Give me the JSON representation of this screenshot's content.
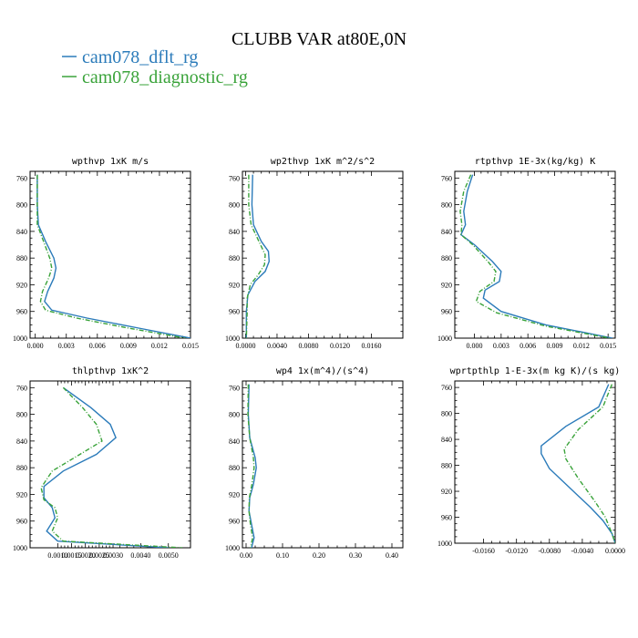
{
  "figure": {
    "title": "CLUBB VAR at80E,0N",
    "legend": [
      {
        "label": "cam078_dflt_rg",
        "color": "#2b7bba"
      },
      {
        "label": "cam078_diagnostic_rg",
        "color": "#3aa33a"
      }
    ]
  },
  "chart_data": [
    {
      "type": "line",
      "title": "wpthvp  1xK m/s",
      "xlim": [
        -0.0005,
        0.015
      ],
      "ylim": [
        1000,
        750
      ],
      "yaxis": "pressure (inverted)",
      "xticks": [
        0.0,
        0.003,
        0.006,
        0.009,
        0.012,
        0.015
      ],
      "xtick_labels": [
        "0.000",
        "0.003",
        "0.006",
        "0.009",
        "0.012",
        "0.015"
      ],
      "yticks": [
        760,
        800,
        840,
        880,
        920,
        960,
        1000
      ],
      "ytick_labels": [
        "760",
        "800",
        "840",
        "880",
        "920",
        "960",
        "1000"
      ],
      "series": [
        {
          "name": "cam078_dflt_rg",
          "color": "#2b7bba",
          "dashed": false,
          "points": [
            [
              0.0002,
              755
            ],
            [
              0.0002,
              800
            ],
            [
              0.0003,
              830
            ],
            [
              0.001,
              855
            ],
            [
              0.0018,
              880
            ],
            [
              0.002,
              895
            ],
            [
              0.0018,
              910
            ],
            [
              0.0012,
              930
            ],
            [
              0.0009,
              945
            ],
            [
              0.0016,
              958
            ],
            [
              0.005,
              970
            ],
            [
              0.01,
              985
            ],
            [
              0.015,
              1000
            ]
          ]
        },
        {
          "name": "cam078_diagnostic_rg",
          "color": "#3aa33a",
          "dashed": true,
          "points": [
            [
              0.0002,
              755
            ],
            [
              0.0002,
              800
            ],
            [
              0.0002,
              830
            ],
            [
              0.0008,
              855
            ],
            [
              0.0014,
              880
            ],
            [
              0.0016,
              895
            ],
            [
              0.0013,
              910
            ],
            [
              0.0007,
              930
            ],
            [
              0.0005,
              945
            ],
            [
              0.001,
              958
            ],
            [
              0.004,
              970
            ],
            [
              0.009,
              985
            ],
            [
              0.0145,
              1000
            ]
          ]
        }
      ]
    },
    {
      "type": "line",
      "title": "wp2thvp  1xK m^2/s^2",
      "xlim": [
        -0.0004,
        0.02
      ],
      "ylim": [
        1000,
        750
      ],
      "yaxis": "pressure (inverted)",
      "xticks": [
        0.0,
        0.004,
        0.008,
        0.012,
        0.016
      ],
      "xtick_labels": [
        "0.0000",
        "0.0040",
        "0.0080",
        "0.0120",
        "0.0160"
      ],
      "yticks": [
        760,
        800,
        840,
        880,
        920,
        960,
        1000
      ],
      "ytick_labels": [
        "760",
        "800",
        "840",
        "880",
        "920",
        "960",
        "1000"
      ],
      "series": [
        {
          "name": "cam078_dflt_rg",
          "color": "#2b7bba",
          "dashed": false,
          "points": [
            [
              0.0009,
              755
            ],
            [
              0.0008,
              800
            ],
            [
              0.001,
              830
            ],
            [
              0.002,
              855
            ],
            [
              0.0029,
              870
            ],
            [
              0.003,
              885
            ],
            [
              0.0025,
              900
            ],
            [
              0.0012,
              915
            ],
            [
              0.0003,
              935
            ],
            [
              0.0001,
              960
            ],
            [
              0.0001,
              1000
            ]
          ]
        },
        {
          "name": "cam078_diagnostic_rg",
          "color": "#3aa33a",
          "dashed": true,
          "points": [
            [
              0.0004,
              755
            ],
            [
              0.0004,
              800
            ],
            [
              0.0007,
              830
            ],
            [
              0.0017,
              855
            ],
            [
              0.0025,
              875
            ],
            [
              0.0024,
              890
            ],
            [
              0.0016,
              905
            ],
            [
              0.0006,
              920
            ],
            [
              0.0002,
              940
            ],
            [
              0.0002,
              960
            ],
            [
              0.0001,
              1000
            ]
          ]
        }
      ]
    },
    {
      "type": "line",
      "title": "rtpthvp  1E-3x(kg/kg) K",
      "xlim": [
        -0.0022,
        0.0158
      ],
      "ylim": [
        1000,
        750
      ],
      "yaxis": "pressure (inverted)",
      "xticks": [
        0.0,
        0.003,
        0.006,
        0.009,
        0.012,
        0.015
      ],
      "xtick_labels": [
        "0.000",
        "0.003",
        "0.006",
        "0.009",
        "0.012",
        "0.015"
      ],
      "yticks": [
        760,
        800,
        840,
        880,
        920,
        960,
        1000
      ],
      "ytick_labels": [
        "760",
        "800",
        "840",
        "880",
        "920",
        "960",
        "1000"
      ],
      "series": [
        {
          "name": "cam078_dflt_rg",
          "color": "#2b7bba",
          "dashed": false,
          "points": [
            [
              -0.0002,
              755
            ],
            [
              -0.0008,
              780
            ],
            [
              -0.0012,
              810
            ],
            [
              -0.001,
              830
            ],
            [
              -0.0015,
              845
            ],
            [
              0.0,
              860
            ],
            [
              0.002,
              885
            ],
            [
              0.003,
              900
            ],
            [
              0.0028,
              915
            ],
            [
              0.0012,
              928
            ],
            [
              0.001,
              940
            ],
            [
              0.003,
              960
            ],
            [
              0.008,
              980
            ],
            [
              0.0155,
              1000
            ]
          ]
        },
        {
          "name": "cam078_diagnostic_rg",
          "color": "#3aa33a",
          "dashed": true,
          "points": [
            [
              -0.0004,
              755
            ],
            [
              -0.0012,
              780
            ],
            [
              -0.0016,
              810
            ],
            [
              -0.0014,
              830
            ],
            [
              -0.0015,
              845
            ],
            [
              -0.0002,
              860
            ],
            [
              0.0015,
              885
            ],
            [
              0.0024,
              900
            ],
            [
              0.0022,
              915
            ],
            [
              0.0006,
              930
            ],
            [
              0.0002,
              945
            ],
            [
              0.0025,
              962
            ],
            [
              0.008,
              982
            ],
            [
              0.0152,
              1000
            ]
          ]
        }
      ]
    },
    {
      "type": "line",
      "title": "thlpthvp  1xK^2",
      "xlim": [
        0.0,
        0.0058
      ],
      "ylim": [
        1000,
        750
      ],
      "yaxis": "pressure (inverted)",
      "xticks": [
        0.001,
        0.0015,
        0.002,
        0.0025,
        0.003,
        0.004,
        0.005
      ],
      "xtick_labels": [
        "0.0010",
        "0.0015",
        "0.0020",
        "0.0025",
        "0.0030",
        "0.0040",
        "0.0050"
      ],
      "yticks": [
        760,
        800,
        840,
        880,
        920,
        960,
        1000
      ],
      "ytick_labels": [
        "760",
        "800",
        "840",
        "880",
        "920",
        "960",
        "1000"
      ],
      "series": [
        {
          "name": "cam078_dflt_rg",
          "color": "#2b7bba",
          "dashed": false,
          "points": [
            [
              0.0012,
              760
            ],
            [
              0.0022,
              790
            ],
            [
              0.0029,
              815
            ],
            [
              0.0031,
              835
            ],
            [
              0.0024,
              860
            ],
            [
              0.0012,
              885
            ],
            [
              0.0005,
              908
            ],
            [
              0.0005,
              925
            ],
            [
              0.0008,
              940
            ],
            [
              0.0009,
              955
            ],
            [
              0.0006,
              975
            ],
            [
              0.001,
              990
            ],
            [
              0.005,
              1000
            ]
          ]
        },
        {
          "name": "cam078_diagnostic_rg",
          "color": "#3aa33a",
          "dashed": true,
          "points": [
            [
              0.0012,
              760
            ],
            [
              0.0019,
              790
            ],
            [
              0.0024,
              815
            ],
            [
              0.0026,
              840
            ],
            [
              0.0016,
              865
            ],
            [
              0.0008,
              885
            ],
            [
              0.0004,
              910
            ],
            [
              0.0005,
              928
            ],
            [
              0.0009,
              940
            ],
            [
              0.001,
              955
            ],
            [
              0.0008,
              975
            ],
            [
              0.0012,
              990
            ],
            [
              0.0055,
              1000
            ]
          ]
        }
      ]
    },
    {
      "type": "line",
      "title": "wp4  1x(m^4)/(s^4)",
      "xlim": [
        -0.01,
        0.43
      ],
      "ylim": [
        1000,
        750
      ],
      "yaxis": "pressure (inverted)",
      "xticks": [
        0.0,
        0.1,
        0.2,
        0.3,
        0.4
      ],
      "xtick_labels": [
        "0.00",
        "0.10",
        "0.20",
        "0.30",
        "0.40"
      ],
      "yticks": [
        760,
        800,
        840,
        880,
        920,
        960,
        1000
      ],
      "ytick_labels": [
        "760",
        "800",
        "840",
        "880",
        "920",
        "960",
        "1000"
      ],
      "series": [
        {
          "name": "cam078_dflt_rg",
          "color": "#2b7bba",
          "dashed": false,
          "points": [
            [
              0.008,
              755
            ],
            [
              0.006,
              800
            ],
            [
              0.01,
              835
            ],
            [
              0.025,
              865
            ],
            [
              0.028,
              880
            ],
            [
              0.02,
              905
            ],
            [
              0.01,
              925
            ],
            [
              0.008,
              945
            ],
            [
              0.015,
              965
            ],
            [
              0.022,
              985
            ],
            [
              0.015,
              1000
            ]
          ]
        },
        {
          "name": "cam078_diagnostic_rg",
          "color": "#3aa33a",
          "dashed": true,
          "points": [
            [
              0.006,
              755
            ],
            [
              0.005,
              800
            ],
            [
              0.01,
              835
            ],
            [
              0.02,
              865
            ],
            [
              0.022,
              880
            ],
            [
              0.016,
              905
            ],
            [
              0.009,
              925
            ],
            [
              0.008,
              945
            ],
            [
              0.012,
              965
            ],
            [
              0.018,
              985
            ],
            [
              0.012,
              1000
            ]
          ]
        }
      ]
    },
    {
      "type": "line",
      "title": "wprtpthlp  1-E-3x(m kg K)/(s kg)",
      "xlim": [
        -0.0195,
        0.0
      ],
      "ylim": [
        1000,
        750
      ],
      "yaxis": "pressure (inverted)",
      "xticks": [
        -0.016,
        -0.012,
        -0.008,
        -0.004,
        0.0
      ],
      "xtick_labels": [
        "-0.0160",
        "-0.0120",
        "-0.0080",
        "-0.0040",
        "0.0000"
      ],
      "yticks": [
        760,
        800,
        840,
        880,
        920,
        960,
        1000
      ],
      "ytick_labels": [
        "760",
        "800",
        "840",
        "880",
        "920",
        "960",
        "1000"
      ],
      "series": [
        {
          "name": "cam078_dflt_rg",
          "color": "#2b7bba",
          "dashed": false,
          "points": [
            [
              -0.0008,
              755
            ],
            [
              -0.002,
              790
            ],
            [
              -0.006,
              820
            ],
            [
              -0.009,
              850
            ],
            [
              -0.009,
              862
            ],
            [
              -0.008,
              885
            ],
            [
              -0.0055,
              915
            ],
            [
              -0.003,
              945
            ],
            [
              -0.0015,
              965
            ],
            [
              -0.0004,
              985
            ],
            [
              0.0,
              1000
            ]
          ]
        },
        {
          "name": "cam078_diagnostic_rg",
          "color": "#3aa33a",
          "dashed": true,
          "points": [
            [
              -0.0004,
              755
            ],
            [
              -0.0015,
              790
            ],
            [
              -0.0045,
              825
            ],
            [
              -0.0062,
              855
            ],
            [
              -0.006,
              870
            ],
            [
              -0.0045,
              900
            ],
            [
              -0.0025,
              935
            ],
            [
              -0.0012,
              960
            ],
            [
              -0.0004,
              985
            ],
            [
              0.0,
              1000
            ]
          ]
        }
      ]
    }
  ]
}
